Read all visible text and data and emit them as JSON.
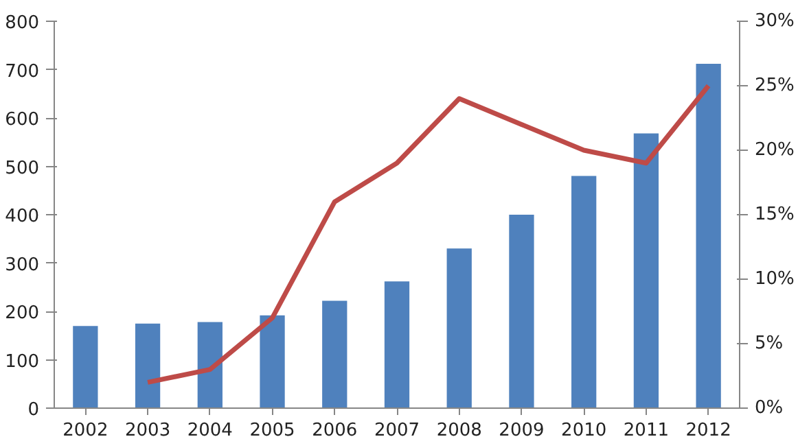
{
  "chart_data": {
    "type": "bar",
    "categories": [
      "2002",
      "2003",
      "2004",
      "2005",
      "2006",
      "2007",
      "2008",
      "2009",
      "2010",
      "2011",
      "2012"
    ],
    "series": [
      {
        "color": "#4f81bd",
        "values": [
          170,
          175,
          178,
          192,
          222,
          262,
          330,
          400,
          480,
          568,
          712
        ]
      },
      {
        "type": "line",
        "axis": "y2",
        "color": "#be4b48",
        "values": [
          null,
          2,
          3,
          7,
          16,
          19,
          24,
          22,
          20,
          19,
          25
        ]
      }
    ],
    "ylim": [
      0,
      800
    ],
    "yticks": [
      0,
      100,
      200,
      300,
      400,
      500,
      600,
      700,
      800
    ],
    "y2lim": [
      0,
      30
    ],
    "y2ticks": [
      {
        "value": 0,
        "label": "0%"
      },
      {
        "value": 5,
        "label": "5%"
      },
      {
        "value": 10,
        "label": "10%"
      },
      {
        "value": 15,
        "label": "15%"
      },
      {
        "value": 20,
        "label": "20%"
      },
      {
        "value": 25,
        "label": "25%"
      },
      {
        "value": 30,
        "label": "30%"
      }
    ],
    "grid": false
  }
}
